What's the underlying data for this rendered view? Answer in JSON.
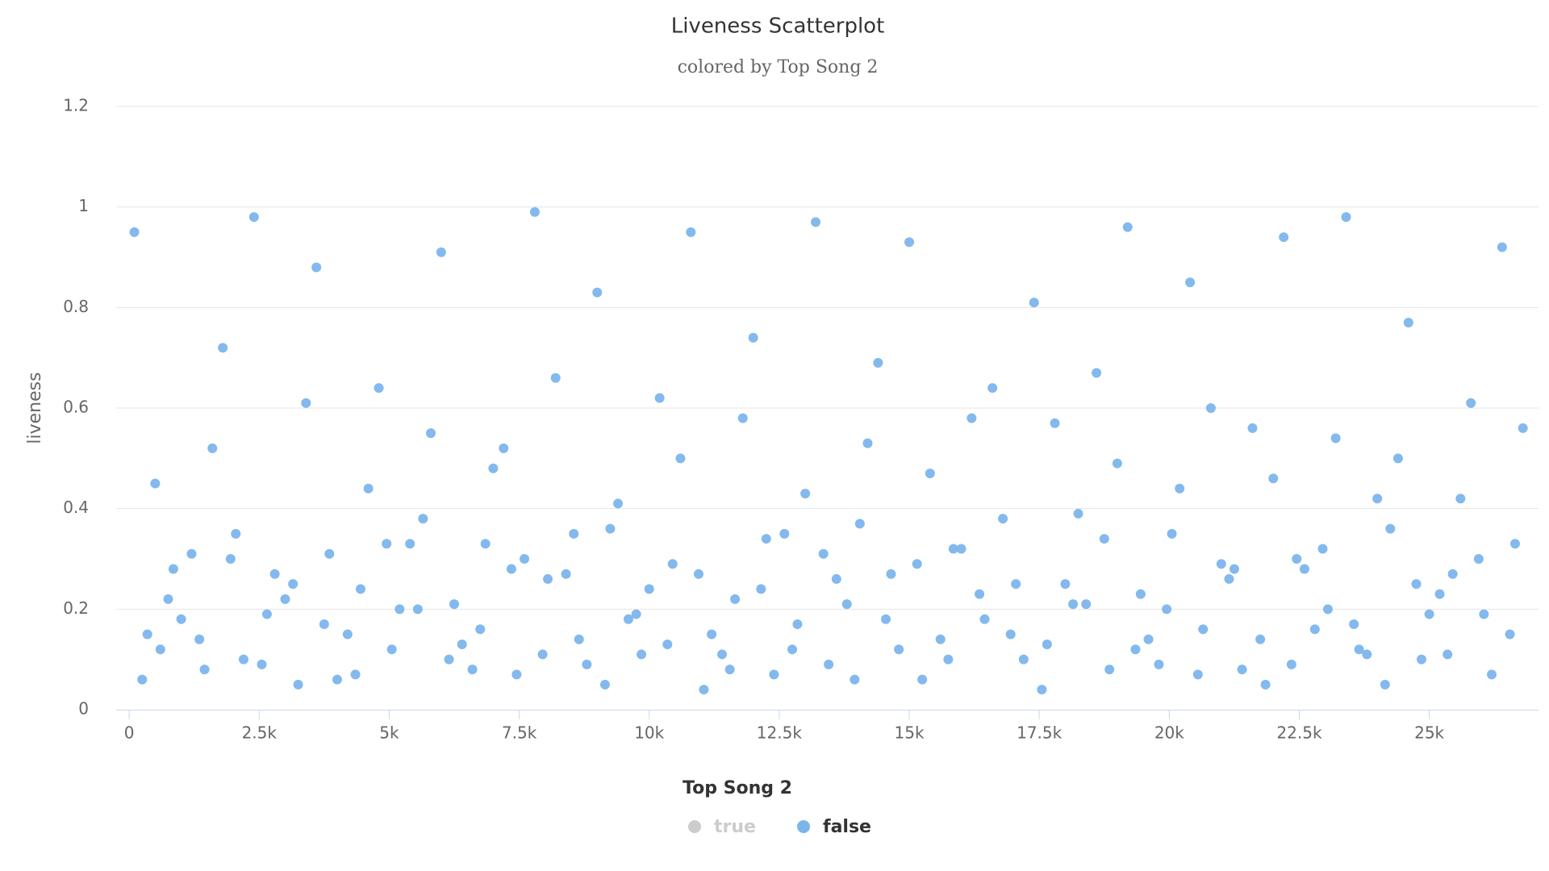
{
  "chart_data": {
    "type": "scatter",
    "title": "Liveness Scatterplot",
    "subtitle": "colored by Top Song 2",
    "y_label": "liveness",
    "legend_title": "Top Song 2",
    "xlim": [
      -250,
      27100
    ],
    "ylim": [
      0,
      1.2
    ],
    "xticks": [
      0,
      {
        "value": 2500,
        "label": "2.5k"
      },
      {
        "value": 5000,
        "label": "5k"
      },
      {
        "value": 7500,
        "label": "7.5k"
      },
      {
        "value": 10000,
        "label": "10k"
      },
      {
        "value": 12500,
        "label": "12.5k"
      },
      {
        "value": 15000,
        "label": "15k"
      },
      {
        "value": 17500,
        "label": "17.5k"
      },
      {
        "value": 20000,
        "label": "20k"
      },
      {
        "value": 22500,
        "label": "22.5k"
      },
      {
        "value": 25000,
        "label": "25k"
      }
    ],
    "yticks": [
      0,
      0.2,
      0.4,
      0.6,
      0.8,
      1,
      1.2
    ],
    "grid": true,
    "series": [
      {
        "name": "true",
        "color": "#cccccc",
        "visible": false,
        "x": [],
        "values": []
      },
      {
        "name": "false",
        "color": "#7cb5ec",
        "visible": true,
        "x": [
          100,
          600,
          1200,
          1800,
          2400,
          3000,
          3600,
          4200,
          4800,
          5400,
          6000,
          6600,
          7200,
          7800,
          8400,
          9000,
          9600,
          10200,
          10800,
          11400,
          12000,
          12600,
          13200,
          13800,
          14400,
          15000,
          15600,
          16200,
          16800,
          17400,
          18000,
          18600,
          19200,
          19800,
          20400,
          21000,
          21600,
          22200,
          22800,
          23400,
          24000,
          24600,
          25200,
          25800,
          26400,
          350,
          850,
          1450,
          2050,
          2650,
          3250,
          3850,
          4450,
          5050,
          5650,
          6250,
          6850,
          7450,
          8050,
          8650,
          9250,
          9850,
          10450,
          11050,
          11650,
          12250,
          12850,
          13450,
          14050,
          14650,
          15250,
          15850,
          16450,
          17050,
          17650,
          18250,
          18850,
          19450,
          20050,
          20650,
          21250,
          21850,
          22450,
          23050,
          23650,
          24250,
          24850,
          25450,
          26050,
          26650,
          500,
          1000,
          1600,
          2200,
          2800,
          3400,
          4000,
          4600,
          5200,
          5800,
          6400,
          7000,
          7600,
          8200,
          8800,
          9400,
          10000,
          10600,
          11200,
          11800,
          12400,
          13000,
          13600,
          14200,
          14800,
          15400,
          16000,
          16600,
          17200,
          17800,
          18400,
          19000,
          19600,
          20200,
          20800,
          21400,
          22000,
          22600,
          23200,
          23800,
          24400,
          25000,
          25600,
          26200,
          26800,
          250,
          750,
          1350,
          1950,
          2550,
          3150,
          3750,
          4350,
          4950,
          5550,
          6150,
          6750,
          7350,
          7950,
          8550,
          9150,
          9750,
          10350,
          10950,
          11550,
          12150,
          12750,
          13350,
          13950,
          14550,
          15150,
          15750,
          16350,
          16950,
          17550,
          18150,
          18750,
          19350,
          19950,
          20550,
          21150,
          21750,
          22350,
          22950,
          23550,
          24150,
          24750,
          25350,
          25950,
          26550
        ],
        "values": [
          0.95,
          0.12,
          0.31,
          0.72,
          0.98,
          0.22,
          0.88,
          0.15,
          0.64,
          0.33,
          0.91,
          0.08,
          0.52,
          0.99,
          0.27,
          0.83,
          0.18,
          0.62,
          0.95,
          0.11,
          0.74,
          0.35,
          0.97,
          0.21,
          0.69,
          0.93,
          0.14,
          0.58,
          0.38,
          0.81,
          0.25,
          0.67,
          0.96,
          0.09,
          0.85,
          0.29,
          0.56,
          0.94,
          0.16,
          0.98,
          0.42,
          0.77,
          0.23,
          0.61,
          0.92,
          0.15,
          0.28,
          0.08,
          0.35,
          0.19,
          0.05,
          0.31,
          0.24,
          0.12,
          0.38,
          0.21,
          0.33,
          0.07,
          0.26,
          0.14,
          0.36,
          0.11,
          0.29,
          0.04,
          0.22,
          0.34,
          0.17,
          0.09,
          0.37,
          0.27,
          0.06,
          0.32,
          0.18,
          0.25,
          0.13,
          0.39,
          0.08,
          0.23,
          0.35,
          0.16,
          0.28,
          0.05,
          0.3,
          0.2,
          0.12,
          0.36,
          0.1,
          0.27,
          0.19,
          0.33,
          0.45,
          0.18,
          0.52,
          0.1,
          0.27,
          0.61,
          0.06,
          0.44,
          0.2,
          0.55,
          0.13,
          0.48,
          0.3,
          0.66,
          0.09,
          0.41,
          0.24,
          0.5,
          0.15,
          0.58,
          0.07,
          0.43,
          0.26,
          0.53,
          0.12,
          0.47,
          0.32,
          0.64,
          0.1,
          0.57,
          0.21,
          0.49,
          0.14,
          0.44,
          0.6,
          0.08,
          0.46,
          0.28,
          0.54,
          0.11,
          0.5,
          0.19,
          0.42,
          0.07,
          0.56,
          0.06,
          0.22,
          0.14,
          0.3,
          0.09,
          0.25,
          0.17,
          0.07,
          0.33,
          0.2,
          0.1,
          0.16,
          0.28,
          0.11,
          0.35,
          0.05,
          0.19,
          0.13,
          0.27,
          0.08,
          0.24,
          0.12,
          0.31,
          0.06,
          0.18,
          0.29,
          0.1,
          0.23,
          0.15,
          0.04,
          0.21,
          0.34,
          0.12,
          0.2,
          0.07,
          0.26,
          0.14,
          0.09,
          0.32,
          0.17,
          0.05,
          0.25,
          0.11,
          0.3,
          0.15
        ]
      }
    ]
  }
}
